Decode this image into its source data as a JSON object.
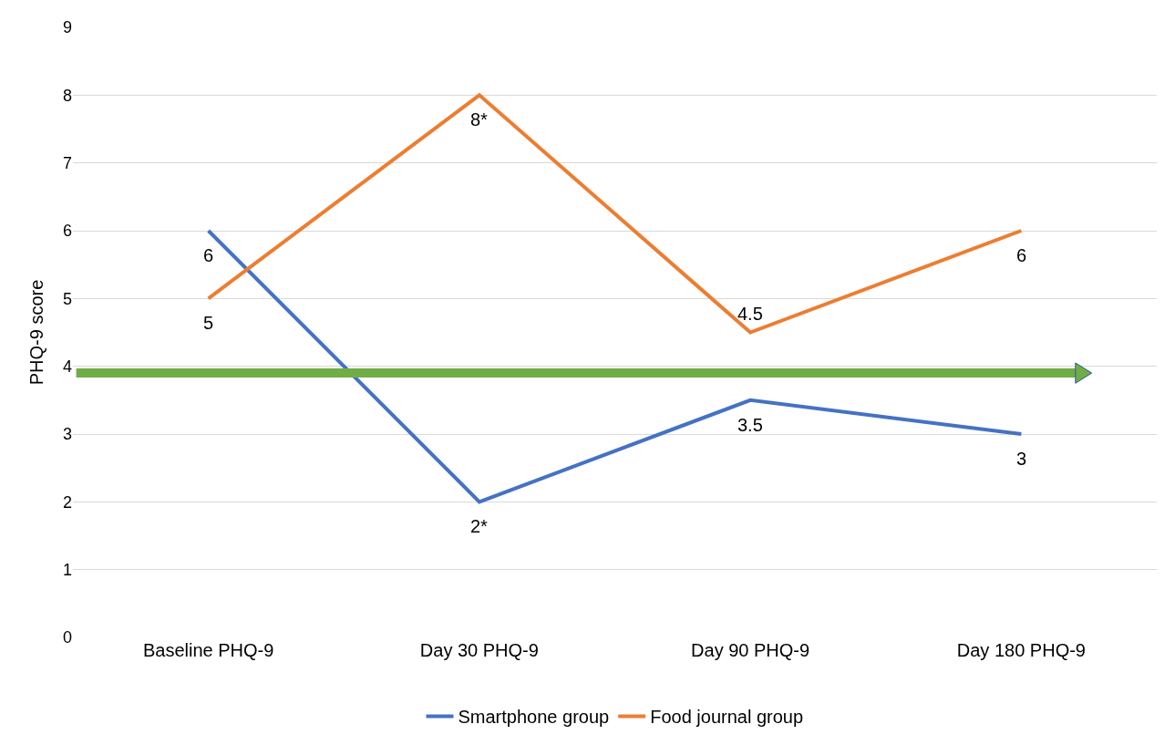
{
  "chart_data": {
    "type": "line",
    "ylabel": "PHQ-9 score",
    "categories": [
      "Baseline PHQ-9",
      "Day 30 PHQ-9",
      "Day 90 PHQ-9",
      "Day 180 PHQ-9"
    ],
    "series": [
      {
        "name": "Smartphone group",
        "color": "#4472c4",
        "values": [
          6,
          2,
          3.5,
          3
        ],
        "value_labels": [
          "6",
          "2*",
          "3.5",
          "3"
        ]
      },
      {
        "name": "Food journal group",
        "color": "#ed7d31",
        "values": [
          5,
          8,
          4.5,
          6
        ],
        "value_labels": [
          "5",
          "8*",
          "4.5",
          "6"
        ]
      }
    ],
    "ylim": [
      0,
      9
    ],
    "yticks": [
      0,
      1,
      2,
      3,
      4,
      5,
      6,
      7,
      8,
      9
    ],
    "ref_lines": [
      {
        "axis": "y",
        "value": 3.9,
        "color": "#70ad47"
      }
    ],
    "grid": "y",
    "legend": "bottom",
    "marker": "none",
    "line_style": "solid"
  }
}
